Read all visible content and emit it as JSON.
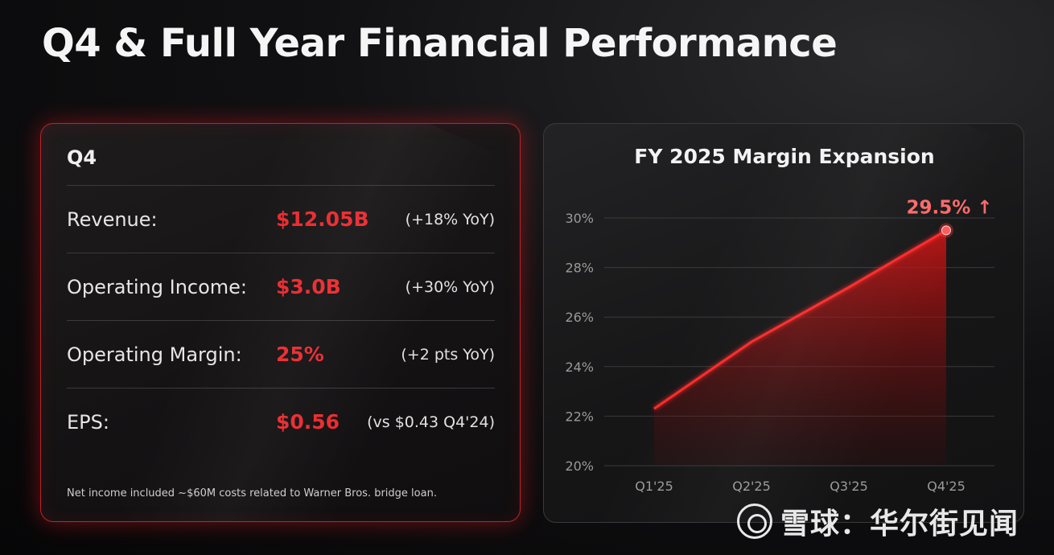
{
  "page": {
    "title": "Q4 & Full Year Financial Performance"
  },
  "q4_card": {
    "title": "Q4",
    "rows": [
      {
        "label": "Revenue:",
        "value": "$12.05B",
        "change": "(+18% YoY)"
      },
      {
        "label": "Operating Income:",
        "value": "$3.0B",
        "change": "(+30% YoY)"
      },
      {
        "label": "Operating Margin:",
        "value": "25%",
        "change": "(+2 pts YoY)"
      },
      {
        "label": "EPS:",
        "value": "$0.56",
        "change": "(vs $0.43 Q4'24)"
      }
    ],
    "footnote": "Net income included ~$60M costs related to Warner Bros. bridge loan."
  },
  "chart_data": {
    "type": "area",
    "title": "FY 2025 Margin Expansion",
    "categories": [
      "Q1'25",
      "Q2'25",
      "Q3'25",
      "Q4'25"
    ],
    "series": [
      {
        "values": [
          22.3,
          25.0,
          27.2,
          29.5
        ]
      }
    ],
    "y_ticks": [
      "20%",
      "22%",
      "24%",
      "26%",
      "28%",
      "30%"
    ],
    "ylim": [
      20,
      30
    ],
    "grid": true,
    "annotation": {
      "text": "29.5% ↑",
      "category": "Q4'25",
      "value": 29.5
    },
    "colors": {
      "line": "#ff2a2a",
      "fill": "#c81010",
      "grid": "#3a3a3c",
      "tick": "#9a9a9a"
    }
  },
  "watermark": {
    "icon": "xueqiu-logo-icon",
    "text": "雪球：华尔街见闻"
  }
}
